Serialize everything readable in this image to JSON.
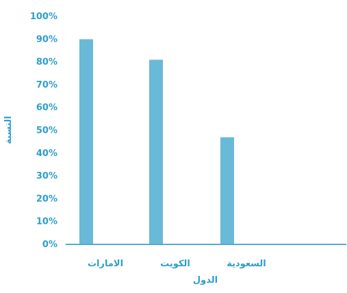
{
  "chart_data": {
    "type": "bar",
    "categories": [
      "الامارات",
      "الكويت",
      "السعودية"
    ],
    "values": [
      90,
      81,
      47
    ],
    "ylim": [
      0,
      100
    ],
    "yticks": [
      0,
      10,
      20,
      30,
      40,
      50,
      60,
      70,
      80,
      90,
      100
    ],
    "ytick_labels": [
      "0%",
      "10%",
      "20%",
      "30%",
      "40%",
      "50%",
      "60%",
      "70%",
      "80%",
      "90%",
      "100%"
    ],
    "xlabel": "الدول",
    "ylabel": "النسبة",
    "grid": false,
    "legend": "none",
    "colors": {
      "bar": "#69b9d8",
      "axis": "#58a9d1",
      "text": "#2f9fc8"
    }
  }
}
